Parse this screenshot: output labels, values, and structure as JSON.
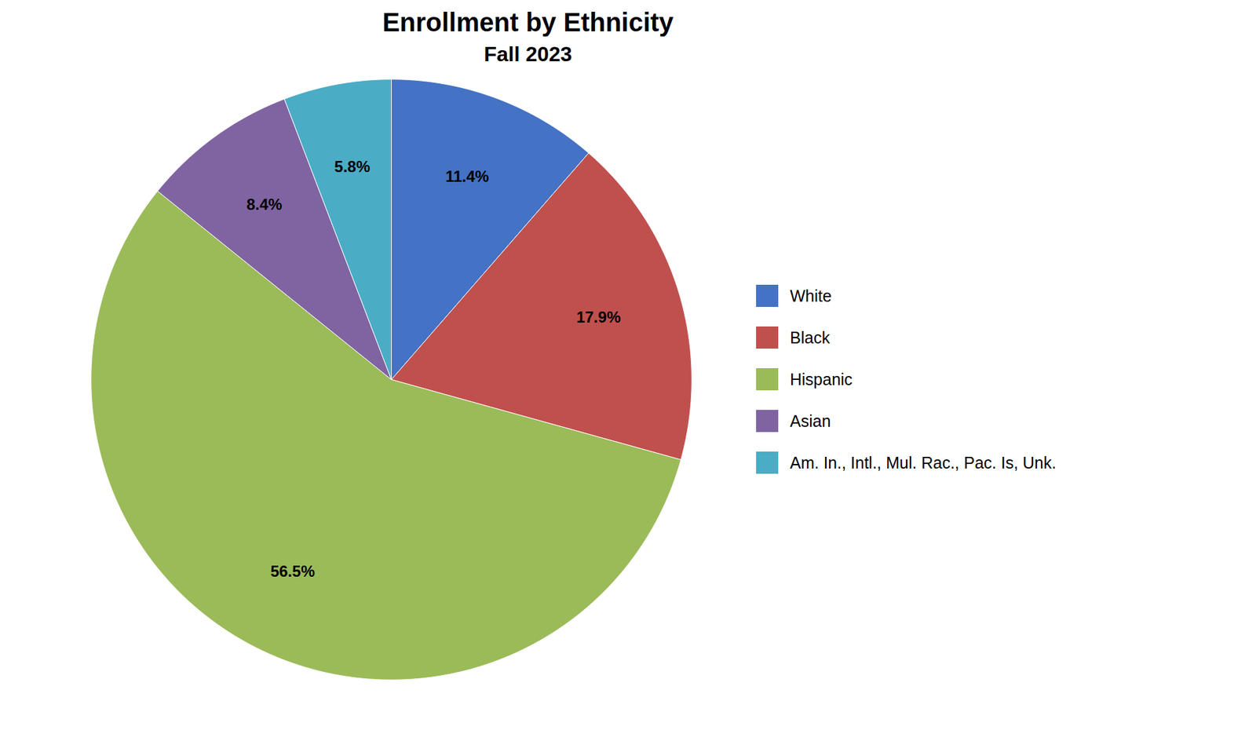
{
  "chart_data": {
    "type": "pie",
    "title": "Enrollment by Ethnicity",
    "subtitle": "Fall 2023",
    "categories": [
      "White",
      "Black",
      "Hispanic",
      "Asian",
      "Am. In., Intl., Mul. Rac., Pac. Is, Unk."
    ],
    "values": [
      11.4,
      17.9,
      56.5,
      8.4,
      5.8
    ],
    "value_labels": [
      "11.4%",
      "17.9%",
      "56.5%",
      "8.4%",
      "5.8%"
    ],
    "colors": [
      "#4472C4",
      "#C0504D",
      "#9BBB59",
      "#8064A2",
      "#4BACC6"
    ],
    "data_labels": true,
    "legend": "right"
  }
}
